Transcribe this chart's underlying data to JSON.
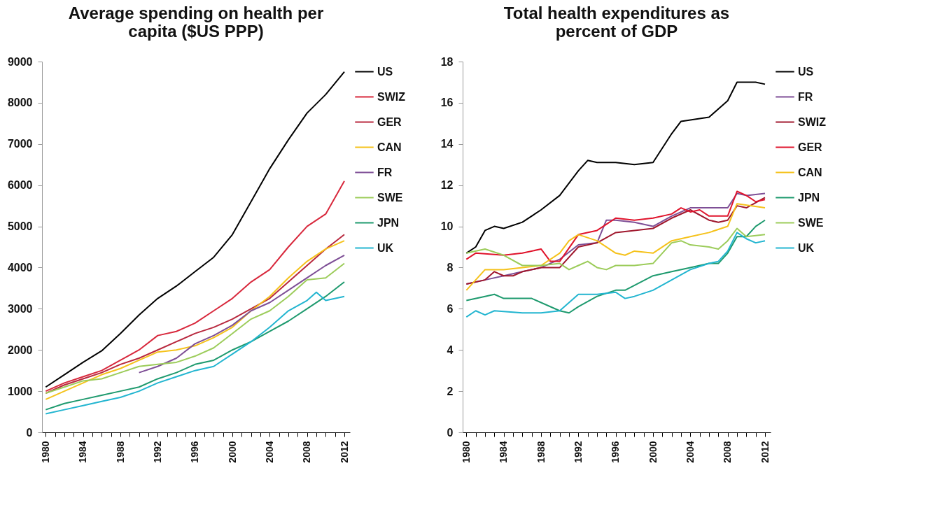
{
  "chart_data": [
    {
      "type": "line",
      "title": "Average spending on health per capita ($US PPP)",
      "legend": "right",
      "x": [
        1980,
        1982,
        1984,
        1986,
        1988,
        1990,
        1992,
        1994,
        1996,
        1998,
        2000,
        2002,
        2004,
        2006,
        2008,
        2010,
        2012
      ],
      "xlim": [
        1979.6,
        2012.6
      ],
      "ylim": [
        0,
        9000
      ],
      "xticks": [
        1980,
        {
          "value": 1981,
          "label": null
        },
        {
          "value": 1982,
          "label": null
        },
        {
          "value": 1983,
          "label": null
        },
        1984,
        {
          "value": 1985,
          "label": null
        },
        {
          "value": 1986,
          "label": null
        },
        {
          "value": 1987,
          "label": null
        },
        1988,
        {
          "value": 1989,
          "label": null
        },
        {
          "value": 1990,
          "label": null
        },
        {
          "value": 1991,
          "label": null
        },
        1992,
        {
          "value": 1993,
          "label": null
        },
        {
          "value": 1994,
          "label": null
        },
        {
          "value": 1995,
          "label": null
        },
        1996,
        {
          "value": 1997,
          "label": null
        },
        {
          "value": 1998,
          "label": null
        },
        {
          "value": 1999,
          "label": null
        },
        2000,
        {
          "value": 2001,
          "label": null
        },
        {
          "value": 2002,
          "label": null
        },
        {
          "value": 2003,
          "label": null
        },
        2004,
        {
          "value": 2005,
          "label": null
        },
        {
          "value": 2006,
          "label": null
        },
        {
          "value": 2007,
          "label": null
        },
        2008,
        {
          "value": 2009,
          "label": null
        },
        {
          "value": 2010,
          "label": null
        },
        {
          "value": 2011,
          "label": null
        },
        2012
      ],
      "yticks": [
        0,
        1000,
        2000,
        3000,
        4000,
        5000,
        6000,
        7000,
        8000,
        9000
      ],
      "series": [
        {
          "name": "US",
          "color": "#000000",
          "values": [
            1100,
            1400,
            1700,
            1980,
            2400,
            2850,
            3250,
            3550,
            3900,
            4250,
            4800,
            5600,
            6400,
            7100,
            7750,
            8200,
            8750
          ]
        },
        {
          "name": "SWIZ",
          "color": "#d8283c",
          "values": [
            1000,
            1200,
            1350,
            1500,
            1750,
            2000,
            2350,
            2450,
            2650,
            2950,
            3250,
            3650,
            3950,
            4500,
            5000,
            5300,
            6100
          ]
        },
        {
          "name": "GER",
          "color": "#b8283e",
          "values": [
            950,
            1150,
            1300,
            1450,
            1650,
            1800,
            2000,
            2200,
            2400,
            2550,
            2750,
            3000,
            3250,
            3650,
            4050,
            4450,
            4800
          ]
        },
        {
          "name": "CAN",
          "color": "#f5c21b",
          "values": [
            800,
            1000,
            1200,
            1400,
            1550,
            1750,
            1950,
            2000,
            2100,
            2300,
            2550,
            2950,
            3300,
            3750,
            4150,
            4450,
            4650
          ]
        },
        {
          "name": "FR",
          "color": "#7e4f96",
          "x": [
            1990,
            1992,
            1994,
            1996,
            1998,
            2000,
            2002,
            2004,
            2006,
            2008,
            2010,
            2012
          ],
          "values": [
            1450,
            1600,
            1800,
            2150,
            2350,
            2600,
            2950,
            3150,
            3450,
            3750,
            4050,
            4300
          ]
        },
        {
          "name": "SWE",
          "color": "#9ccc5a",
          "values": [
            950,
            1100,
            1250,
            1300,
            1450,
            1600,
            1650,
            1700,
            1850,
            2050,
            2400,
            2750,
            2950,
            3300,
            3700,
            3750,
            4100
          ]
        },
        {
          "name": "JPN",
          "color": "#1e9a6e",
          "values": [
            550,
            700,
            800,
            900,
            1000,
            1100,
            1300,
            1450,
            1650,
            1750,
            2000,
            2200,
            2450,
            2700,
            3000,
            3300,
            3650
          ]
        },
        {
          "name": "UK",
          "color": "#22b5d0",
          "x": [
            1980,
            1982,
            1984,
            1986,
            1988,
            1990,
            1992,
            1994,
            1996,
            1998,
            2000,
            2002,
            2004,
            2006,
            2008,
            2009,
            2010,
            2012
          ],
          "values": [
            450,
            550,
            650,
            750,
            850,
            1000,
            1200,
            1350,
            1500,
            1600,
            1900,
            2200,
            2550,
            2950,
            3200,
            3400,
            3200,
            3300
          ]
        }
      ]
    },
    {
      "type": "line",
      "title": "Total health expenditures as percent of GDP",
      "legend": "right",
      "xlim": [
        1979.6,
        2012.6
      ],
      "ylim": [
        0,
        18
      ],
      "xticks": [
        1980,
        {
          "value": 1981,
          "label": null
        },
        {
          "value": 1982,
          "label": null
        },
        {
          "value": 1983,
          "label": null
        },
        1984,
        {
          "value": 1985,
          "label": null
        },
        {
          "value": 1986,
          "label": null
        },
        {
          "value": 1987,
          "label": null
        },
        1988,
        {
          "value": 1989,
          "label": null
        },
        {
          "value": 1990,
          "label": null
        },
        {
          "value": 1991,
          "label": null
        },
        1992,
        {
          "value": 1993,
          "label": null
        },
        {
          "value": 1994,
          "label": null
        },
        {
          "value": 1995,
          "label": null
        },
        1996,
        {
          "value": 1997,
          "label": null
        },
        {
          "value": 1998,
          "label": null
        },
        {
          "value": 1999,
          "label": null
        },
        2000,
        {
          "value": 2001,
          "label": null
        },
        {
          "value": 2002,
          "label": null
        },
        {
          "value": 2003,
          "label": null
        },
        2004,
        {
          "value": 2005,
          "label": null
        },
        {
          "value": 2006,
          "label": null
        },
        {
          "value": 2007,
          "label": null
        },
        2008,
        {
          "value": 2009,
          "label": null
        },
        {
          "value": 2010,
          "label": null
        },
        {
          "value": 2011,
          "label": null
        },
        2012
      ],
      "yticks": [
        0,
        2,
        4,
        6,
        8,
        10,
        12,
        14,
        16,
        18
      ],
      "series": [
        {
          "name": "US",
          "color": "#000000",
          "x": [
            1980,
            1981,
            1982,
            1983,
            1984,
            1986,
            1988,
            1990,
            1992,
            1993,
            1994,
            1996,
            1998,
            2000,
            2002,
            2003,
            2006,
            2008,
            2009,
            2011,
            2012
          ],
          "values": [
            8.7,
            9.0,
            9.8,
            10.0,
            9.9,
            10.2,
            10.8,
            11.5,
            12.7,
            13.2,
            13.1,
            13.1,
            13.0,
            13.1,
            14.5,
            15.1,
            15.3,
            16.1,
            17.0,
            17.0,
            16.9
          ]
        },
        {
          "name": "FR",
          "color": "#7e4f96",
          "x": [
            1980,
            1982,
            1984,
            1986,
            1988,
            1990,
            1992,
            1994,
            1995,
            1996,
            1998,
            2000,
            2002,
            2004,
            2006,
            2008,
            2009,
            2010,
            2012
          ],
          "values": [
            7.2,
            7.4,
            7.6,
            7.8,
            8.0,
            8.4,
            9.1,
            9.2,
            10.3,
            10.3,
            10.2,
            10.0,
            10.5,
            10.9,
            10.9,
            10.9,
            11.6,
            11.5,
            11.6
          ]
        },
        {
          "name": "SWIZ",
          "color": "#a0182e",
          "x": [
            1980,
            1982,
            1983,
            1984,
            1985,
            1986,
            1988,
            1990,
            1992,
            1994,
            1996,
            1998,
            2000,
            2002,
            2004,
            2006,
            2007,
            2008,
            2009,
            2010,
            2012
          ],
          "values": [
            7.2,
            7.4,
            7.8,
            7.6,
            7.6,
            7.8,
            8.0,
            8.0,
            9.0,
            9.2,
            9.7,
            9.8,
            9.9,
            10.4,
            10.8,
            10.3,
            10.2,
            10.3,
            11.0,
            10.9,
            11.4
          ]
        },
        {
          "name": "GER",
          "color": "#e0142c",
          "x": [
            1980,
            1981,
            1984,
            1986,
            1988,
            1989,
            1990,
            1992,
            1994,
            1995,
            1996,
            1998,
            2000,
            2002,
            2003,
            2004,
            2005,
            2006,
            2008,
            2009,
            2010,
            2011,
            2012
          ],
          "values": [
            8.4,
            8.7,
            8.6,
            8.7,
            8.9,
            8.3,
            8.3,
            9.6,
            9.8,
            10.1,
            10.4,
            10.3,
            10.4,
            10.6,
            10.9,
            10.7,
            10.8,
            10.5,
            10.5,
            11.7,
            11.5,
            11.2,
            11.3
          ]
        },
        {
          "name": "CAN",
          "color": "#f5c21b",
          "x": [
            1980,
            1982,
            1984,
            1986,
            1988,
            1990,
            1991,
            1992,
            1994,
            1996,
            1997,
            1998,
            2000,
            2002,
            2004,
            2006,
            2008,
            2009,
            2012
          ],
          "values": [
            6.9,
            7.9,
            7.9,
            8.0,
            8.1,
            8.7,
            9.3,
            9.6,
            9.3,
            8.7,
            8.6,
            8.8,
            8.7,
            9.3,
            9.5,
            9.7,
            10.0,
            11.1,
            10.9
          ]
        },
        {
          "name": "JPN",
          "color": "#1e9a6e",
          "x": [
            1980,
            1982,
            1983,
            1984,
            1987,
            1990,
            1991,
            1992,
            1994,
            1996,
            1997,
            2000,
            2002,
            2004,
            2006,
            2007,
            2008,
            2009,
            2010,
            2011,
            2012
          ],
          "values": [
            6.4,
            6.6,
            6.7,
            6.5,
            6.5,
            5.9,
            5.8,
            6.1,
            6.6,
            6.9,
            6.9,
            7.6,
            7.8,
            8.0,
            8.2,
            8.2,
            8.7,
            9.5,
            9.5,
            10.0,
            10.3
          ]
        },
        {
          "name": "SWE",
          "color": "#9ccc5a",
          "x": [
            1980,
            1982,
            1984,
            1986,
            1988,
            1990,
            1991,
            1992,
            1993,
            1994,
            1995,
            1996,
            1998,
            2000,
            2002,
            2003,
            2004,
            2006,
            2007,
            2008,
            2009,
            2010,
            2012
          ],
          "values": [
            8.7,
            8.9,
            8.6,
            8.1,
            8.1,
            8.2,
            7.9,
            8.1,
            8.3,
            8.0,
            7.9,
            8.1,
            8.1,
            8.2,
            9.2,
            9.3,
            9.1,
            9.0,
            8.9,
            9.3,
            9.9,
            9.5,
            9.6
          ]
        },
        {
          "name": "UK",
          "color": "#22b5d0",
          "x": [
            1980,
            1981,
            1982,
            1983,
            1986,
            1988,
            1990,
            1992,
            1994,
            1996,
            1997,
            1998,
            2000,
            2002,
            2004,
            2006,
            2007,
            2008,
            2009,
            2010,
            2011,
            2012
          ],
          "values": [
            5.6,
            5.9,
            5.7,
            5.9,
            5.8,
            5.8,
            5.9,
            6.7,
            6.7,
            6.8,
            6.5,
            6.6,
            6.9,
            7.4,
            7.9,
            8.2,
            8.3,
            8.8,
            9.7,
            9.4,
            9.2,
            9.3
          ]
        }
      ]
    }
  ]
}
